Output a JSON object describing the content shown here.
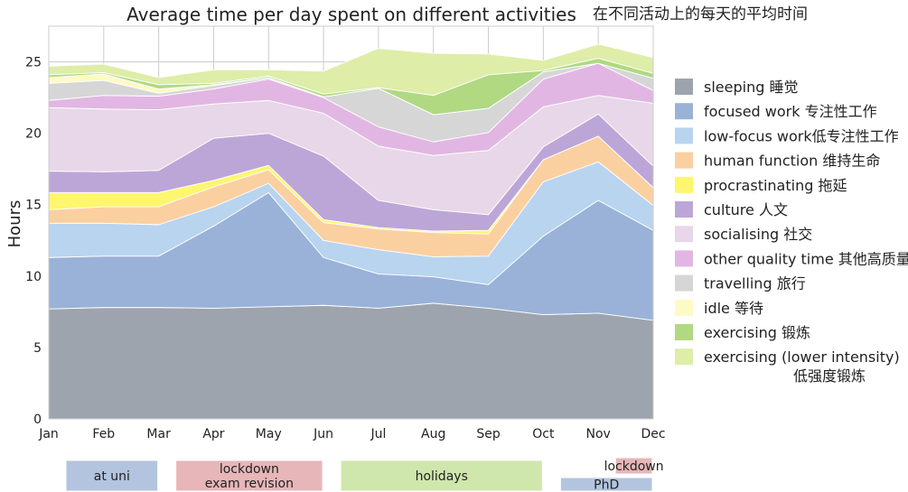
{
  "chart_data": {
    "type": "area",
    "stacked": true,
    "title": "Average time per day spent on different activities",
    "title_cn": "在不同活动上的每天的平均时间",
    "xlabel": "",
    "ylabel": "Hours",
    "ylim": [
      0,
      27.5
    ],
    "yticks": [
      0,
      5,
      10,
      15,
      20,
      25
    ],
    "grid": true,
    "legend_position": "right",
    "categories": [
      "Jan",
      "Feb",
      "Mar",
      "Apr",
      "May",
      "Jun",
      "Jul",
      "Aug",
      "Sep",
      "Oct",
      "Nov",
      "Dec"
    ],
    "series": [
      {
        "name": "sleeping  睡觉",
        "color": "#9ea4ae",
        "values": [
          7.7,
          7.8,
          7.8,
          7.75,
          7.85,
          7.95,
          7.75,
          8.1,
          7.75,
          7.3,
          7.4,
          6.9
        ]
      },
      {
        "name": "focused work 专注性工作",
        "color": "#9ab2d8",
        "values": [
          3.6,
          3.6,
          3.6,
          5.75,
          8.0,
          3.35,
          2.4,
          1.85,
          1.65,
          5.5,
          7.9,
          6.3
        ]
      },
      {
        "name": "low-focus work低专注性工作",
        "color": "#b9d4ef",
        "values": [
          2.4,
          2.3,
          2.2,
          1.35,
          0.65,
          1.2,
          1.7,
          1.4,
          2.0,
          3.8,
          2.7,
          1.75
        ]
      },
      {
        "name": "human function 维持生命",
        "color": "#fbd0a1",
        "values": [
          0.95,
          1.15,
          1.25,
          1.4,
          0.95,
          1.25,
          1.45,
          1.7,
          1.55,
          1.55,
          1.8,
          1.25
        ]
      },
      {
        "name": "procrastinating 拖延",
        "color": "#fdf66e",
        "values": [
          1.2,
          1.0,
          1.0,
          0.45,
          0.3,
          0.2,
          0.1,
          0.1,
          0.25,
          0.0,
          0.0,
          0.0
        ]
      },
      {
        "name": "culture 人文",
        "color": "#bca6d7",
        "values": [
          1.5,
          1.45,
          1.55,
          2.95,
          2.25,
          4.45,
          1.9,
          1.5,
          1.1,
          0.9,
          1.55,
          1.5
        ]
      },
      {
        "name": "socialising 社交",
        "color": "#e8d7e8",
        "values": [
          4.45,
          4.4,
          4.25,
          2.4,
          2.3,
          3.0,
          3.8,
          3.8,
          4.5,
          2.8,
          1.3,
          4.4
        ]
      },
      {
        "name": "other quality time 其他高质量时间",
        "color": "#e2b6e2",
        "values": [
          0.5,
          0.95,
          0.95,
          1.05,
          1.5,
          1.1,
          1.35,
          0.95,
          1.25,
          1.95,
          2.25,
          0.9
        ]
      },
      {
        "name": "travelling 旅行",
        "color": "#d6d6d6",
        "values": [
          1.2,
          1.05,
          0.2,
          0.25,
          0.1,
          0.05,
          2.7,
          1.9,
          1.7,
          0.5,
          0.0,
          0.85
        ]
      },
      {
        "name": "idle 等待",
        "color": "#fdfac6",
        "values": [
          0.4,
          0.45,
          0.3,
          0.05,
          0.0,
          0.0,
          0.0,
          0.0,
          0.0,
          0.0,
          0.0,
          0.0
        ]
      },
      {
        "name": "exercising 锻炼",
        "color": "#b0d982",
        "values": [
          0.2,
          0.1,
          0.3,
          0.1,
          0.1,
          0.2,
          0.05,
          1.35,
          2.35,
          0.1,
          0.35,
          0.35
        ]
      },
      {
        "name": "exercising (lower intensity) 低强度锻炼",
        "color": "#deeda8",
        "values": [
          0.6,
          0.6,
          0.5,
          0.95,
          0.45,
          1.6,
          2.75,
          2.95,
          1.45,
          0.7,
          1.0,
          1.1
        ]
      }
    ],
    "periods": [
      {
        "label": "at uni",
        "start": "Jan",
        "end": "Mar",
        "row": "main",
        "color": "#b3c4de"
      },
      {
        "label": "lockdown\nexam revision",
        "start": "Mar",
        "end": "Jun",
        "row": "main",
        "color": "#e6b6b8"
      },
      {
        "label": "holidays",
        "start": "Jun",
        "end": "Oct",
        "row": "main",
        "color": "#cfe6ad"
      },
      {
        "label": "lockdown",
        "start": "Nov",
        "end": "Dec",
        "row": "top",
        "color": "#e6b6b8"
      },
      {
        "label": "PhD",
        "start": "Oct",
        "end": "Dec",
        "row": "bottom",
        "color": "#b3c4de"
      }
    ]
  }
}
